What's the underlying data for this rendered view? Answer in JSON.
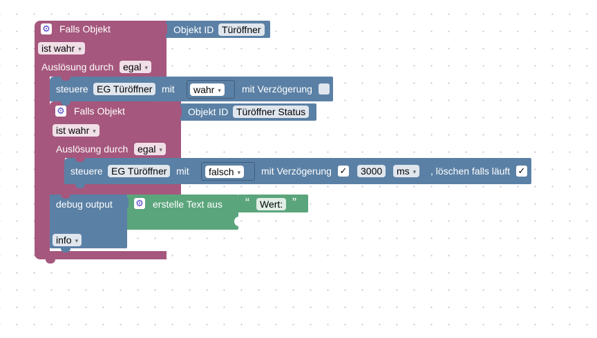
{
  "outer_if": {
    "title": "Falls Objekt",
    "object_label": "Objekt ID",
    "object_value": "Türöffner",
    "condition": "ist wahr",
    "trigger_label": "Auslösung durch",
    "trigger_value": "egal"
  },
  "control1": {
    "label": "steuere",
    "target": "EG Türöffner",
    "with_label": "mit",
    "value": "wahr",
    "delay_label": "mit Verzögerung",
    "delay_checked": false
  },
  "inner_if": {
    "title": "Falls Objekt",
    "object_label": "Objekt ID",
    "object_value": "Türöffner Status",
    "condition": "ist wahr",
    "trigger_label": "Auslösung durch",
    "trigger_value": "egal"
  },
  "control2": {
    "label": "steuere",
    "target": "EG Türöffner",
    "with_label": "mit",
    "value": "falsch",
    "delay_label": "mit Verzögerung",
    "delay_checked": true,
    "delay_value": "3000",
    "unit": "ms",
    "clear_label": ", löschen falls läuft",
    "clear_checked": true
  },
  "debug": {
    "label": "debug output",
    "level": "info"
  },
  "text_create": {
    "label": "erstelle Text aus",
    "open_quote": "“",
    "text": "Wert:",
    "close_quote": "”"
  },
  "glyphs": {
    "gear": "⚙",
    "check": "✓",
    "dropdown": "▾"
  },
  "colors": {
    "event_block": "#a5577d",
    "action_block": "#5b80a5",
    "text_block": "#5ba57c"
  }
}
